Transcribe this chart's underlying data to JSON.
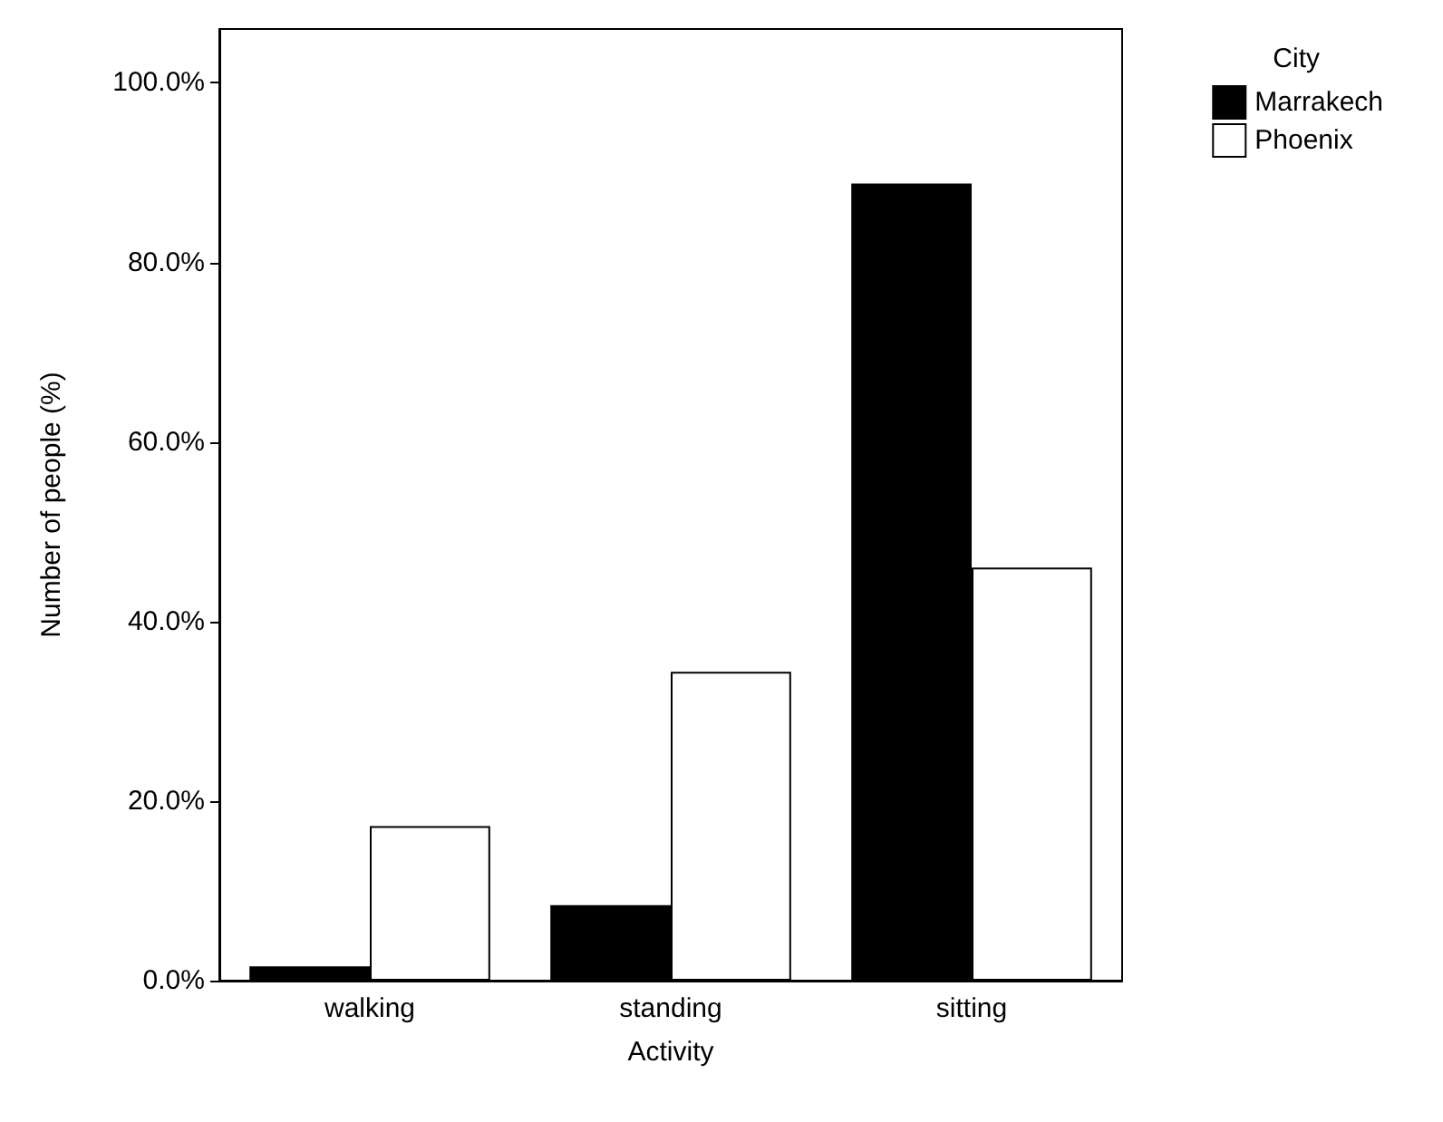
{
  "chart_data": {
    "type": "bar",
    "xlabel": "Activity",
    "ylabel": "Number of people (%)",
    "legend_title": "City",
    "categories": [
      "walking",
      "standing",
      "sitting"
    ],
    "series": [
      {
        "name": "Marrakech",
        "color": "#000000",
        "values": [
          1.6,
          8.4,
          88.8
        ]
      },
      {
        "name": "Phoenix",
        "color": "#ffffff",
        "values": [
          17.2,
          34.4,
          46.0
        ]
      }
    ],
    "ylim": [
      0,
      106
    ],
    "yticks": [
      {
        "value": 0,
        "label": "0.0%"
      },
      {
        "value": 20,
        "label": "20.0%"
      },
      {
        "value": 40,
        "label": "40.0%"
      },
      {
        "value": 60,
        "label": "60.0%"
      },
      {
        "value": 80,
        "label": "80.0%"
      },
      {
        "value": 100,
        "label": "100.0%"
      }
    ],
    "grid": false,
    "legend": "top right"
  }
}
